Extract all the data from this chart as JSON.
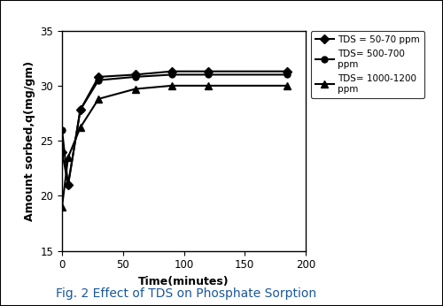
{
  "title": "Fig. 2 Effect of TDS on Phosphate Sorption",
  "xlabel": "Time(minutes)",
  "ylabel": "Amount sorbed,q(mg/gm)",
  "xlim": [
    0,
    200
  ],
  "ylim": [
    15,
    35
  ],
  "xticks": [
    0,
    50,
    100,
    150,
    200
  ],
  "yticks": [
    15,
    20,
    25,
    30,
    35
  ],
  "series": [
    {
      "label": "TDS = 50-70 ppm",
      "x": [
        0,
        5,
        15,
        30,
        60,
        90,
        120,
        185
      ],
      "y": [
        24.0,
        21.0,
        27.8,
        30.8,
        31.0,
        31.3,
        31.3,
        31.3
      ],
      "marker": "D",
      "color": "#000000",
      "markersize": 5,
      "linewidth": 1.5
    },
    {
      "label": "TDS= 500-700\nppm",
      "x": [
        0,
        5,
        15,
        30,
        60,
        90,
        120,
        185
      ],
      "y": [
        26.0,
        21.0,
        27.8,
        30.5,
        30.8,
        31.0,
        31.0,
        31.0
      ],
      "marker": "o",
      "color": "#000000",
      "markersize": 5,
      "linewidth": 1.5
    },
    {
      "label": "TDS= 1000-1200\nppm",
      "x": [
        0,
        5,
        15,
        30,
        60,
        90,
        120,
        185
      ],
      "y": [
        19.0,
        23.5,
        26.2,
        28.8,
        29.7,
        30.0,
        30.0,
        30.0
      ],
      "marker": "^",
      "color": "#000000",
      "markersize": 6,
      "linewidth": 1.5
    }
  ],
  "background_color": "#ffffff",
  "legend_fontsize": 7.5,
  "axis_label_fontsize": 9,
  "tick_fontsize": 8.5,
  "title_fontsize": 10,
  "title_color": "#1a5799",
  "outer_border": true
}
